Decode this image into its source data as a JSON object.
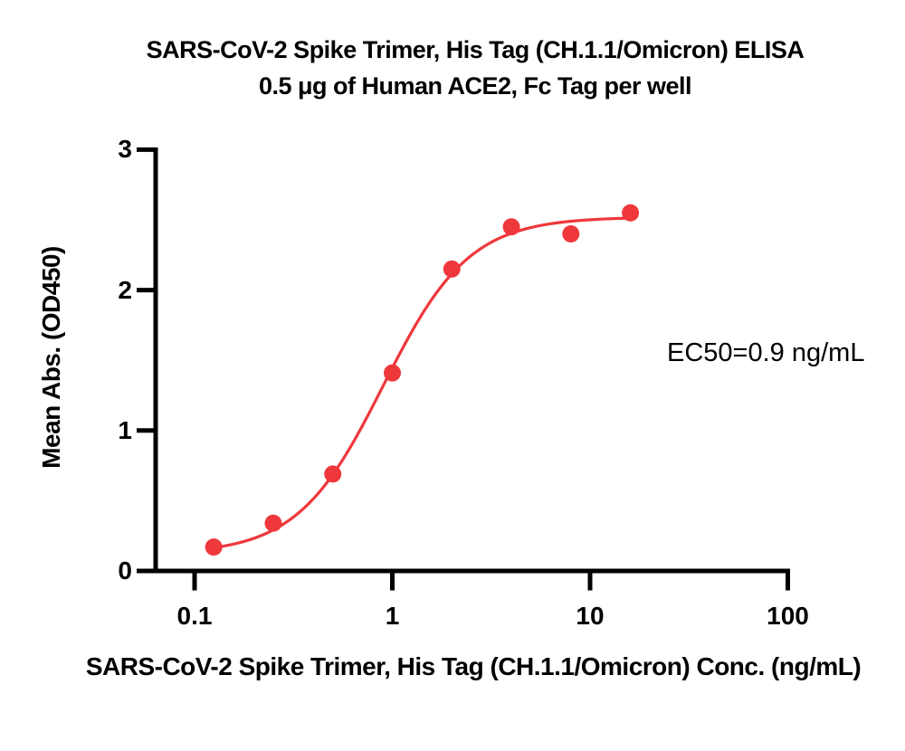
{
  "figure": {
    "title_line1": "SARS-CoV-2 Spike Trimer, His Tag (CH.1.1/Omicron) ELISA",
    "title_line2": "0.5 μg of Human ACE2, Fc Tag per well",
    "x_axis_label": "SARS-CoV-2 Spike Trimer, His Tag (CH.1.1/Omicron) Conc. (ng/mL)",
    "y_axis_label": "Mean Abs. (OD450)",
    "annotation": "EC50=0.9 ng/mL"
  },
  "chart_data": {
    "type": "scatter",
    "title": "SARS-CoV-2 Spike Trimer, His Tag (CH.1.1/Omicron) ELISA",
    "subtitle": "0.5 μg of Human ACE2, Fc Tag per well",
    "xlabel": "SARS-CoV-2 Spike Trimer, His Tag (CH.1.1/Omicron) Conc. (ng/mL)",
    "ylabel": "Mean Abs. (OD450)",
    "x_scale": "log10",
    "x": [
      0.125,
      0.25,
      0.5,
      1,
      2,
      4,
      8,
      16
    ],
    "y": [
      0.17,
      0.34,
      0.69,
      1.41,
      2.15,
      2.45,
      2.4,
      2.55
    ],
    "x_ticks": [
      0.1,
      1,
      10,
      100
    ],
    "x_tick_labels": [
      "0.1",
      "1",
      "10",
      "100"
    ],
    "y_ticks": [
      0,
      1,
      2,
      3
    ],
    "y_tick_labels": [
      "0",
      "1",
      "2",
      "3"
    ],
    "xlim": [
      0.063,
      100
    ],
    "ylim": [
      0,
      3
    ],
    "grid": false,
    "legend": "none",
    "annotation": "EC50=0.9 ng/mL",
    "ec50_ng_ml": 0.9,
    "fit_curve": {
      "model": "4PL",
      "bottom": 0.12,
      "top": 2.52,
      "ec50": 0.9,
      "hill": 2.0,
      "x_start": 0.125,
      "x_end": 16
    },
    "colors": {
      "points": "#EE383C",
      "curve": "#EE383C",
      "axis": "#000000"
    }
  }
}
